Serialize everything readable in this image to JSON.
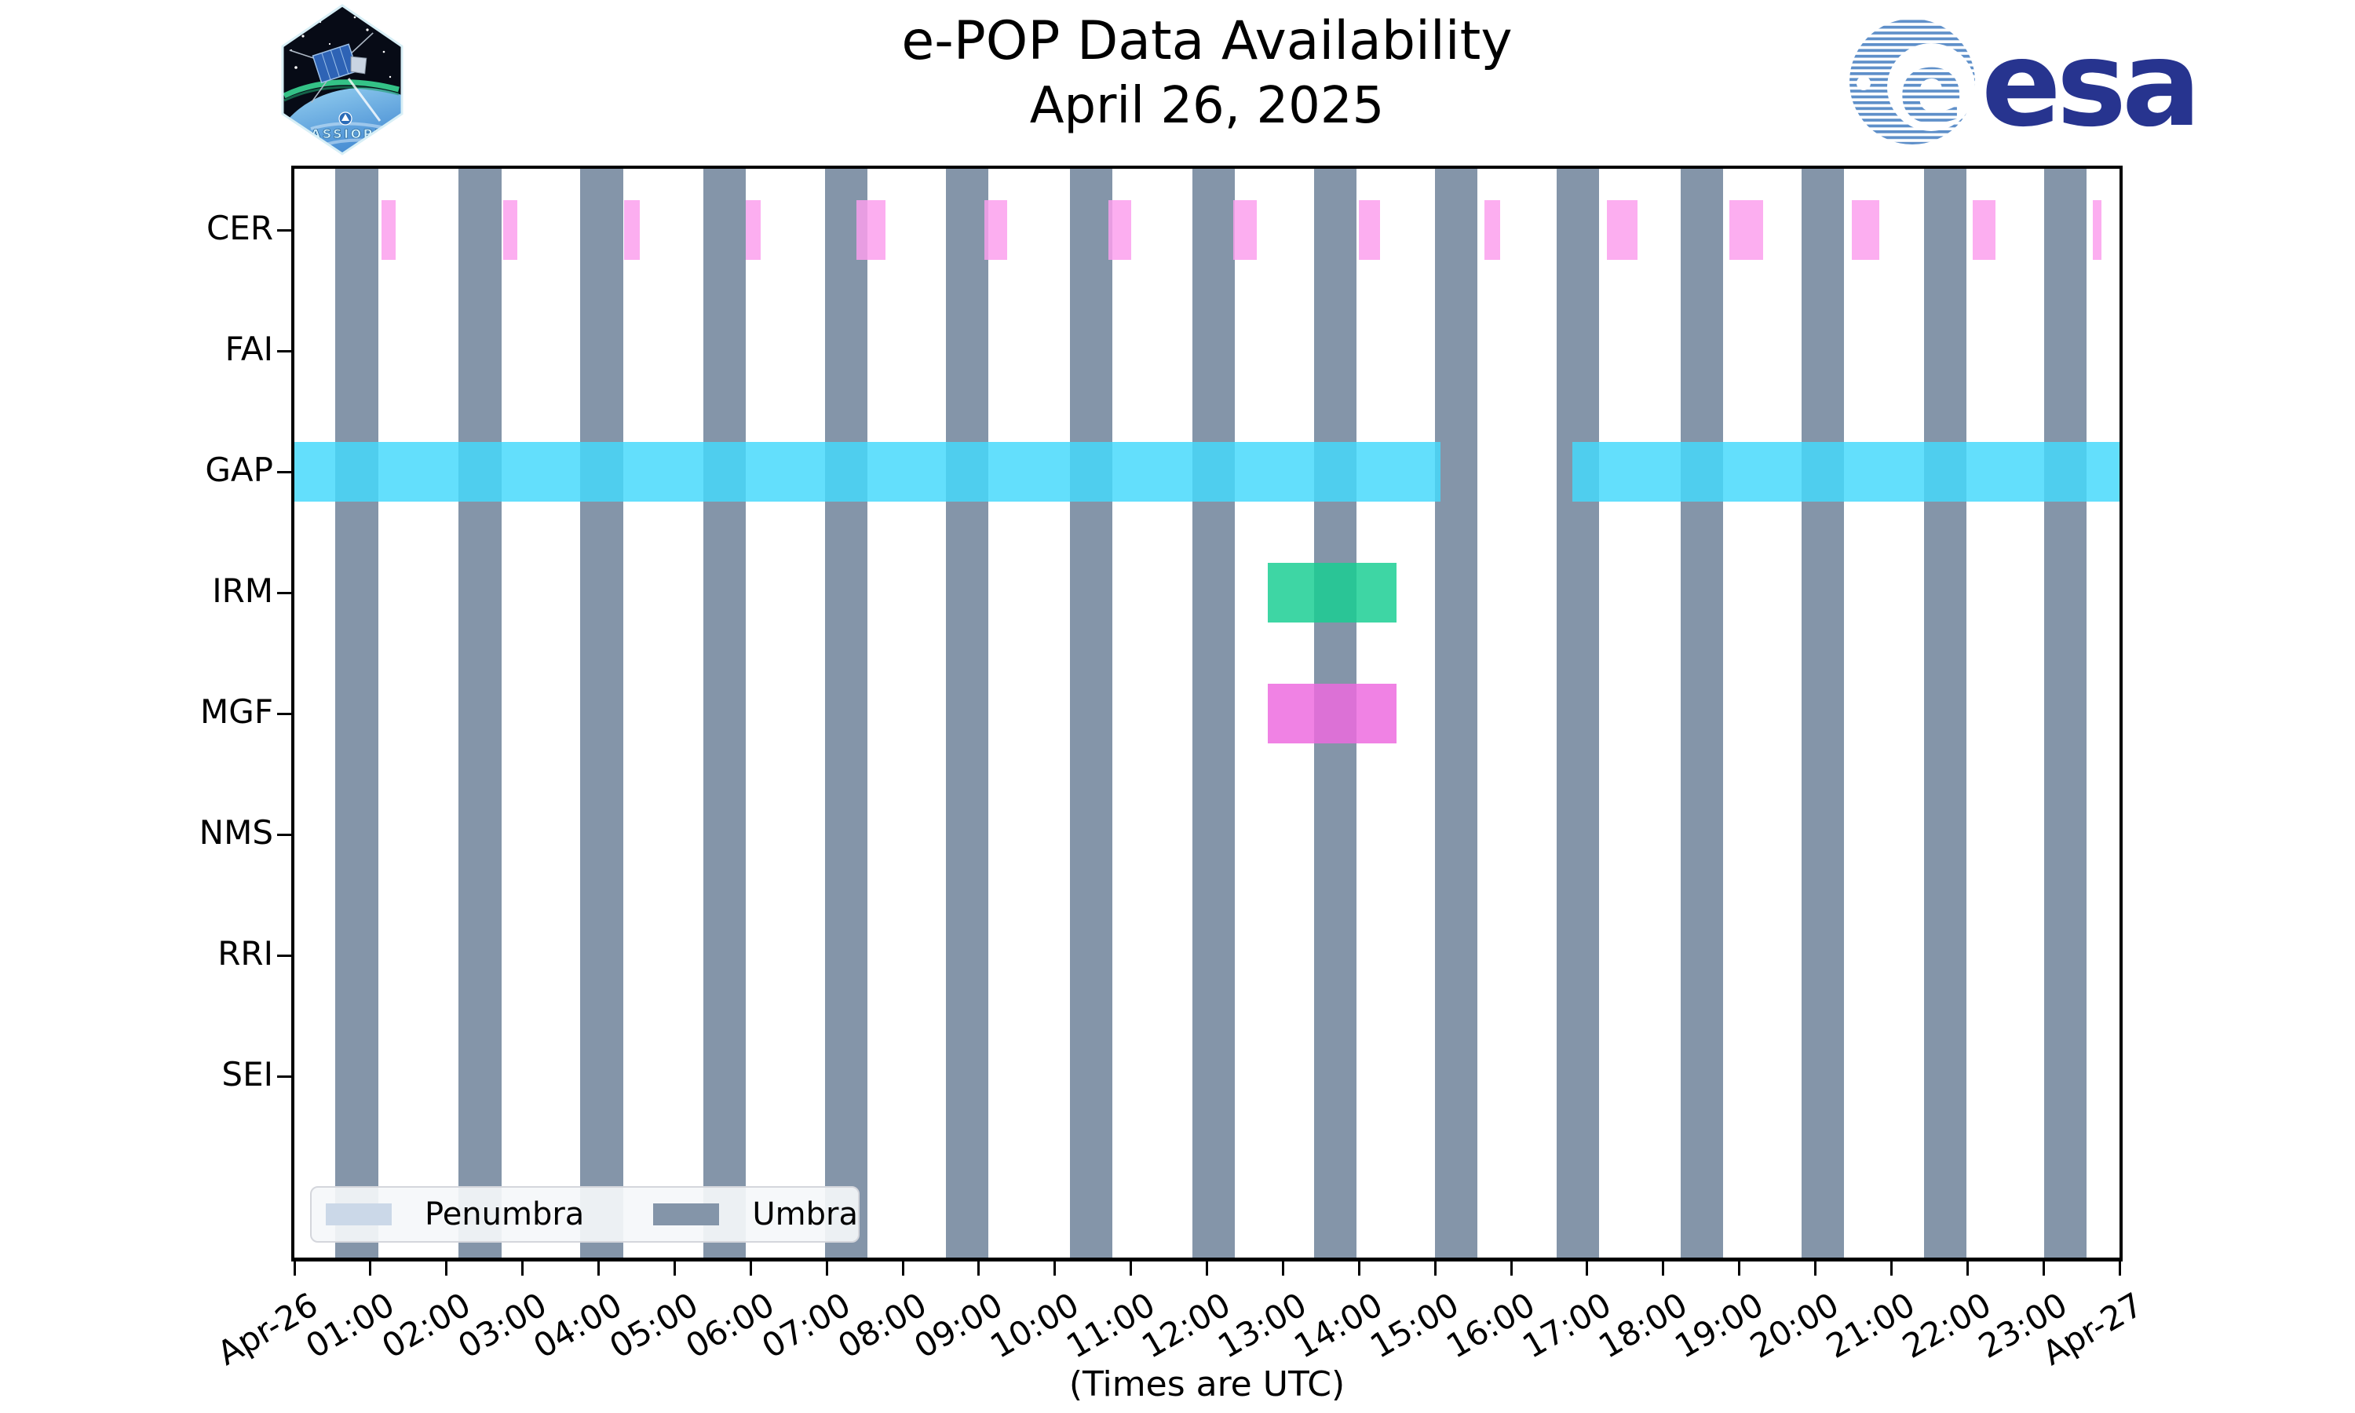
{
  "header": {
    "cassiope_label": "CASSIOPE",
    "esa_label": "esa"
  },
  "chart_data": {
    "type": "timeline",
    "title": "e-POP Data Availability",
    "subtitle": "April 26, 2025",
    "xlabel": "(Times are UTC)",
    "x_range_hours": [
      0,
      24
    ],
    "x_tick_labels": [
      "Apr-26",
      "01:00",
      "02:00",
      "03:00",
      "04:00",
      "05:00",
      "06:00",
      "07:00",
      "08:00",
      "09:00",
      "10:00",
      "11:00",
      "12:00",
      "13:00",
      "14:00",
      "15:00",
      "16:00",
      "17:00",
      "18:00",
      "19:00",
      "20:00",
      "21:00",
      "22:00",
      "23:00",
      "Apr-27"
    ],
    "rows": [
      "CER",
      "FAI",
      "GAP",
      "IRM",
      "MGF",
      "NMS",
      "RRI",
      "SEI"
    ],
    "eclipse": {
      "umbra_intervals_hours": [
        [
          0.54,
          1.1
        ],
        [
          2.16,
          2.72
        ],
        [
          3.76,
          4.32
        ],
        [
          5.38,
          5.94
        ],
        [
          6.98,
          7.54
        ],
        [
          8.57,
          9.13
        ],
        [
          10.2,
          10.76
        ],
        [
          11.81,
          12.37
        ],
        [
          13.41,
          13.97
        ],
        [
          15.0,
          15.56
        ],
        [
          16.6,
          17.16
        ],
        [
          18.23,
          18.79
        ],
        [
          19.82,
          20.38
        ],
        [
          21.43,
          21.99
        ],
        [
          23.01,
          23.57
        ]
      ]
    },
    "availability_hours": {
      "CER": [
        [
          1.15,
          1.33
        ],
        [
          2.75,
          2.93
        ],
        [
          4.34,
          4.54
        ],
        [
          5.94,
          6.13
        ],
        [
          7.39,
          7.77
        ],
        [
          9.07,
          9.37
        ],
        [
          10.7,
          11.0
        ],
        [
          12.35,
          12.66
        ],
        [
          14.0,
          14.28
        ],
        [
          15.65,
          15.86
        ],
        [
          17.26,
          17.66
        ],
        [
          18.87,
          19.31
        ],
        [
          20.48,
          20.84
        ],
        [
          22.07,
          22.37
        ],
        [
          23.65,
          23.76
        ]
      ],
      "FAI": [],
      "GAP": [
        [
          0.0,
          15.07
        ],
        [
          16.8,
          24.0
        ]
      ],
      "IRM": [
        [
          12.8,
          14.49
        ]
      ],
      "MGF": [
        [
          12.8,
          14.49
        ]
      ],
      "NMS": [],
      "RRI": [],
      "SEI": []
    },
    "legend": {
      "position": "lower left",
      "items": [
        {
          "label": "Penumbra",
          "color": "#CBD8E8"
        },
        {
          "label": "Umbra",
          "color": "#8495A9"
        }
      ]
    },
    "colors": {
      "umbra": "#8495A9",
      "penumbra": "#CBD8E8",
      "CER": "rgba(252,158,237,0.84)",
      "GAP": "rgba(69,217,252,0.84)",
      "IRM": "rgba(25,206,146,0.84)",
      "MGF": "rgba(237,106,223,0.84)"
    },
    "grid": false
  }
}
